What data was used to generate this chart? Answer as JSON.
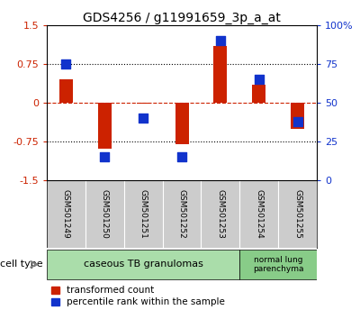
{
  "title": "GDS4256 / g11991659_3p_a_at",
  "samples": [
    "GSM501249",
    "GSM501250",
    "GSM501251",
    "GSM501252",
    "GSM501253",
    "GSM501254",
    "GSM501255"
  ],
  "red_values": [
    0.45,
    -0.9,
    -0.02,
    -0.8,
    1.1,
    0.35,
    -0.5
  ],
  "blue_values_pct": [
    75,
    15,
    40,
    15,
    90,
    65,
    38
  ],
  "ylim": [
    -1.5,
    1.5
  ],
  "yticks_left": [
    -1.5,
    -0.75,
    0,
    0.75,
    1.5
  ],
  "ytick_labels_left": [
    "-1.5",
    "-0.75",
    "0",
    "0.75",
    "1.5"
  ],
  "yticks_right": [
    0,
    25,
    50,
    75,
    100
  ],
  "ytick_labels_right": [
    "0",
    "25",
    "50",
    "75",
    "100%"
  ],
  "red_color": "#cc2200",
  "blue_color": "#1133cc",
  "bar_width": 0.35,
  "blue_marker_size": 55,
  "group1_count": 5,
  "group2_count": 2,
  "group1_label": "caseous TB granulomas",
  "group2_label": "normal lung\nparenchyma",
  "group1_color": "#aaddaa",
  "group2_color": "#88cc88",
  "tick_area_color": "#cccccc",
  "legend1_label": "transformed count",
  "legend2_label": "percentile rank within the sample",
  "background_color": "#ffffff",
  "figsize": [
    4.0,
    3.54
  ],
  "dpi": 100
}
